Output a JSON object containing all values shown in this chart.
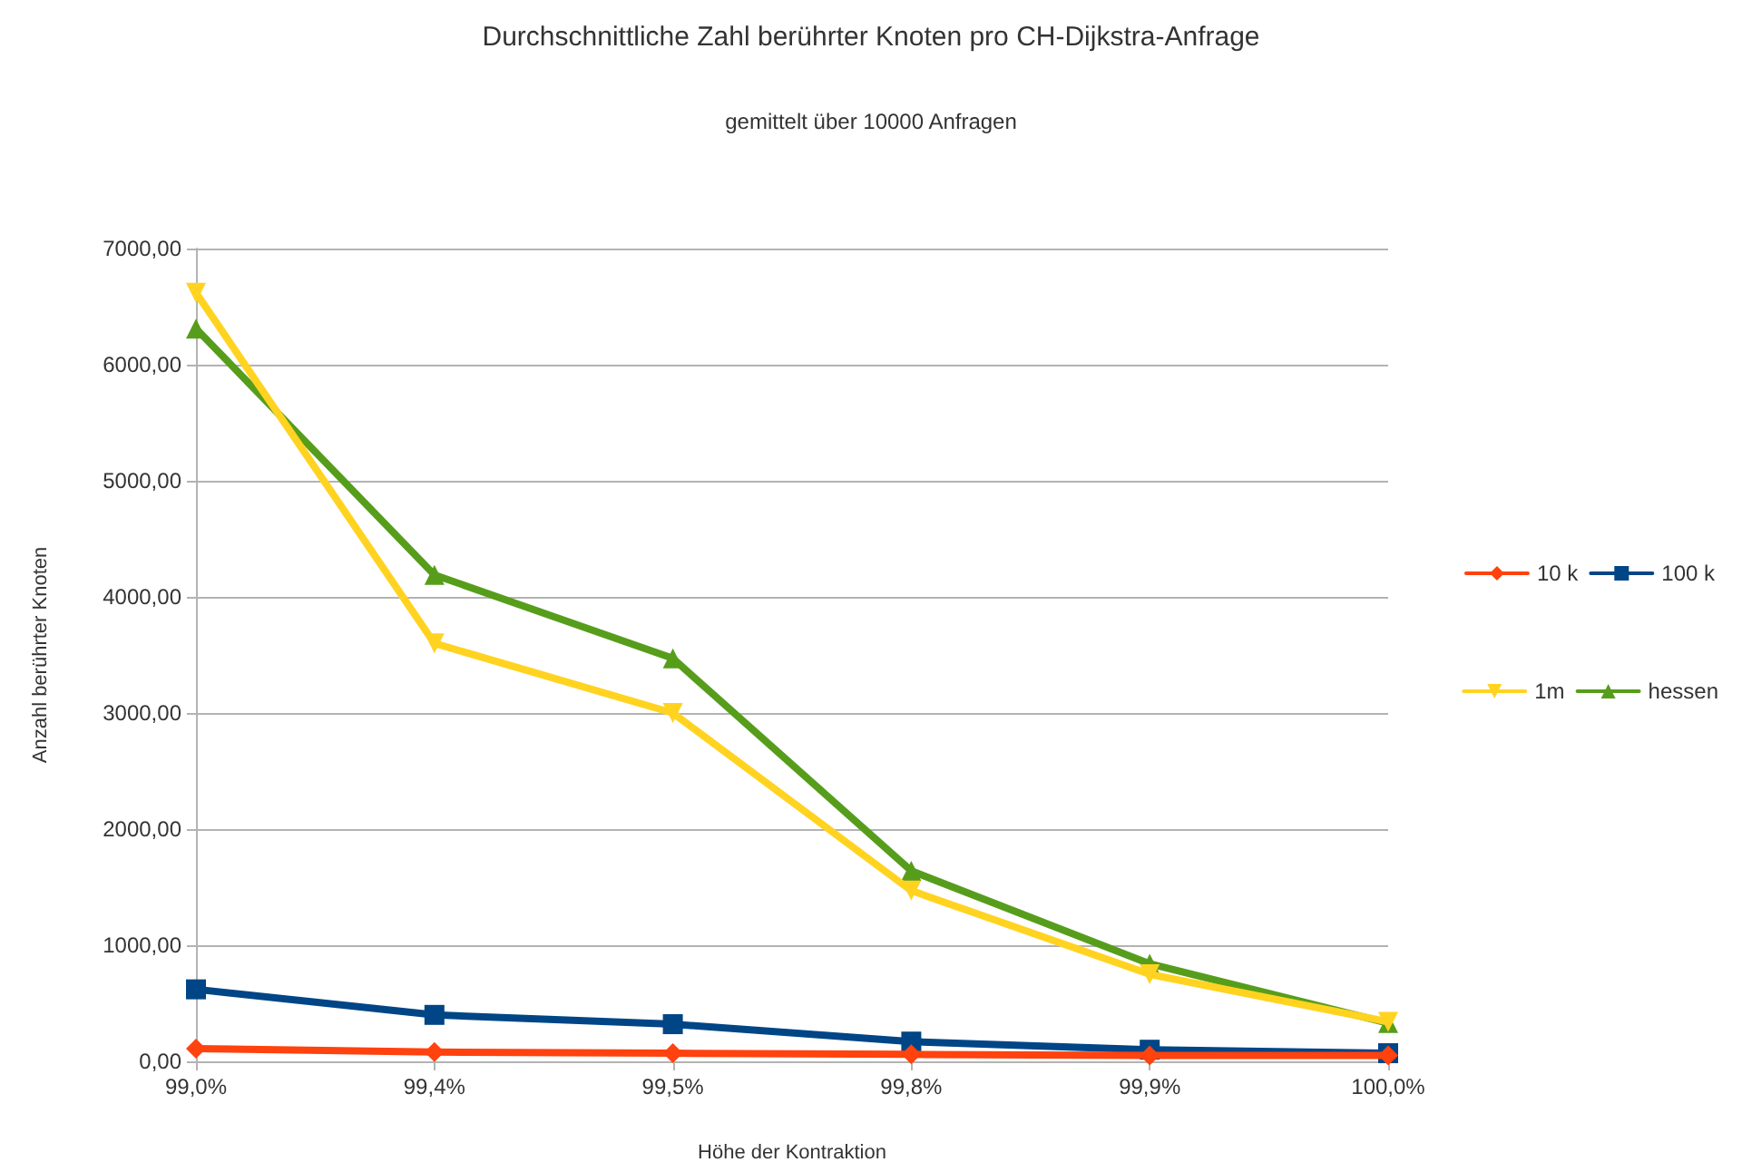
{
  "chart_data": {
    "type": "line",
    "title": "Durchschnittliche Zahl berührter Knoten pro CH-Dijkstra-Anfrage",
    "subtitle": "gemittelt über 10000 Anfragen",
    "xlabel": "Höhe der Kontraktion",
    "ylabel": "Anzahl berührter Knoten",
    "categories": [
      "99,0%",
      "99,4%",
      "99,5%",
      "99,8%",
      "99,9%",
      "100,0%"
    ],
    "series": [
      {
        "name": "10 k",
        "color": "#ff420e",
        "marker": "diamond",
        "values": [
          110,
          80,
          70,
          60,
          50,
          50
        ]
      },
      {
        "name": "100 k",
        "color": "#004586",
        "marker": "square",
        "values": [
          620,
          400,
          320,
          170,
          100,
          70
        ]
      },
      {
        "name": "1m",
        "color": "#ffd320",
        "marker": "triangle-down",
        "values": [
          6620,
          3600,
          3000,
          1470,
          750,
          340
        ]
      },
      {
        "name": "hessen",
        "color": "#579d1c",
        "marker": "triangle",
        "values": [
          6310,
          4190,
          3470,
          1640,
          840,
          330
        ]
      }
    ],
    "ylim": [
      0,
      7000
    ],
    "yticks": [
      {
        "value": 0,
        "label": "0,00"
      },
      {
        "value": 1000,
        "label": "1000,00"
      },
      {
        "value": 2000,
        "label": "2000,00"
      },
      {
        "value": 3000,
        "label": "3000,00"
      },
      {
        "value": 4000,
        "label": "4000,00"
      },
      {
        "value": 5000,
        "label": "5000,00"
      },
      {
        "value": 6000,
        "label": "6000,00"
      },
      {
        "value": 7000,
        "label": "7000,00"
      }
    ],
    "grid": "y",
    "legend": "right",
    "line_style": "solid"
  }
}
